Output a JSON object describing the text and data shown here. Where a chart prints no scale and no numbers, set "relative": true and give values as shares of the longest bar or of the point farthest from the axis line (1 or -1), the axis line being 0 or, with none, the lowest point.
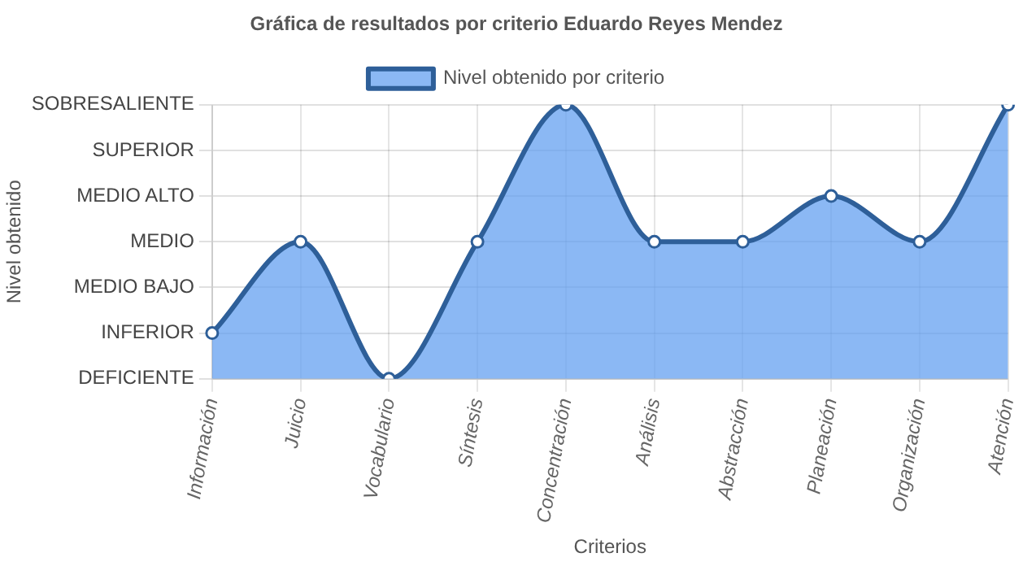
{
  "chart_data": {
    "type": "area",
    "title": "Gráfica de resultados por criterio Eduardo Reyes Mendez",
    "xlabel": "Criterios",
    "annotations": [
      "Nivel obtenido"
    ],
    "categories": [
      "Información",
      "Juicio",
      "Vocabulario",
      "Síntesis",
      "Concentración",
      "Análisis",
      "Abstracción",
      "Planeación",
      "Organización",
      "Atención"
    ],
    "y_categories": [
      "SOBRESALIENTE",
      "SUPERIOR",
      "MEDIO ALTO",
      "MEDIO",
      "MEDIO BAJO",
      "INFERIOR",
      "DEFICIENTE"
    ],
    "relative": true,
    "series": [
      {
        "name": "Nivel obtenido por criterio",
        "color": "#2e5f99",
        "values": [
          0.167,
          0.5,
          0,
          0.5,
          1,
          0.5,
          0.5,
          0.667,
          0.5,
          1
        ]
      }
    ],
    "grid": true,
    "legend": "top",
    "marker": "circle",
    "line_style": "solid"
  }
}
